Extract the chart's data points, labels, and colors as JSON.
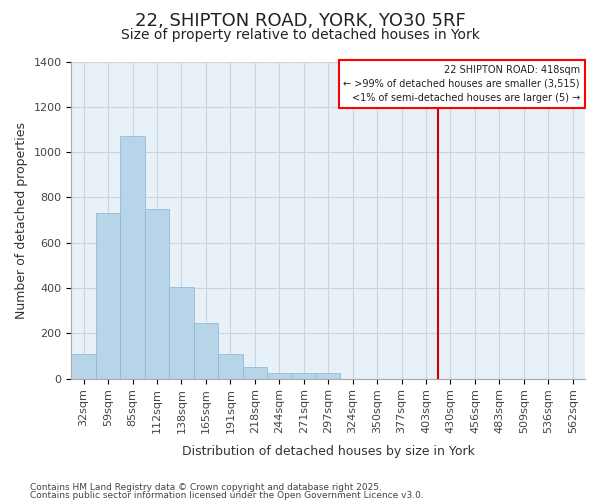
{
  "title_line1": "22, SHIPTON ROAD, YORK, YO30 5RF",
  "title_line2": "Size of property relative to detached houses in York",
  "xlabel": "Distribution of detached houses by size in York",
  "ylabel": "Number of detached properties",
  "categories": [
    "32sqm",
    "59sqm",
    "85sqm",
    "112sqm",
    "138sqm",
    "165sqm",
    "191sqm",
    "218sqm",
    "244sqm",
    "271sqm",
    "297sqm",
    "324sqm",
    "350sqm",
    "377sqm",
    "403sqm",
    "430sqm",
    "456sqm",
    "483sqm",
    "509sqm",
    "536sqm",
    "562sqm"
  ],
  "values": [
    110,
    730,
    1070,
    750,
    405,
    245,
    110,
    50,
    25,
    25,
    25,
    0,
    0,
    0,
    0,
    0,
    0,
    0,
    0,
    0,
    0
  ],
  "bar_color": "#b8d4e8",
  "bar_edge_color": "#8ab4d4",
  "vline_color": "#cc0000",
  "vline_x": 14.5,
  "ylim": [
    0,
    1400
  ],
  "yticks": [
    0,
    200,
    400,
    600,
    800,
    1000,
    1200,
    1400
  ],
  "legend_title": "22 SHIPTON ROAD: 418sqm",
  "legend_line1": "← >99% of detached houses are smaller (3,515)",
  "legend_line2": "<1% of semi-detached houses are larger (5) →",
  "footer_line1": "Contains HM Land Registry data © Crown copyright and database right 2025.",
  "footer_line2": "Contains public sector information licensed under the Open Government Licence v3.0.",
  "bg_color": "#ffffff",
  "plot_bg_color": "#e8f0f8",
  "grid_color": "#c8d4e0",
  "title_fontsize": 13,
  "subtitle_fontsize": 10,
  "axis_label_fontsize": 9,
  "tick_fontsize": 8
}
